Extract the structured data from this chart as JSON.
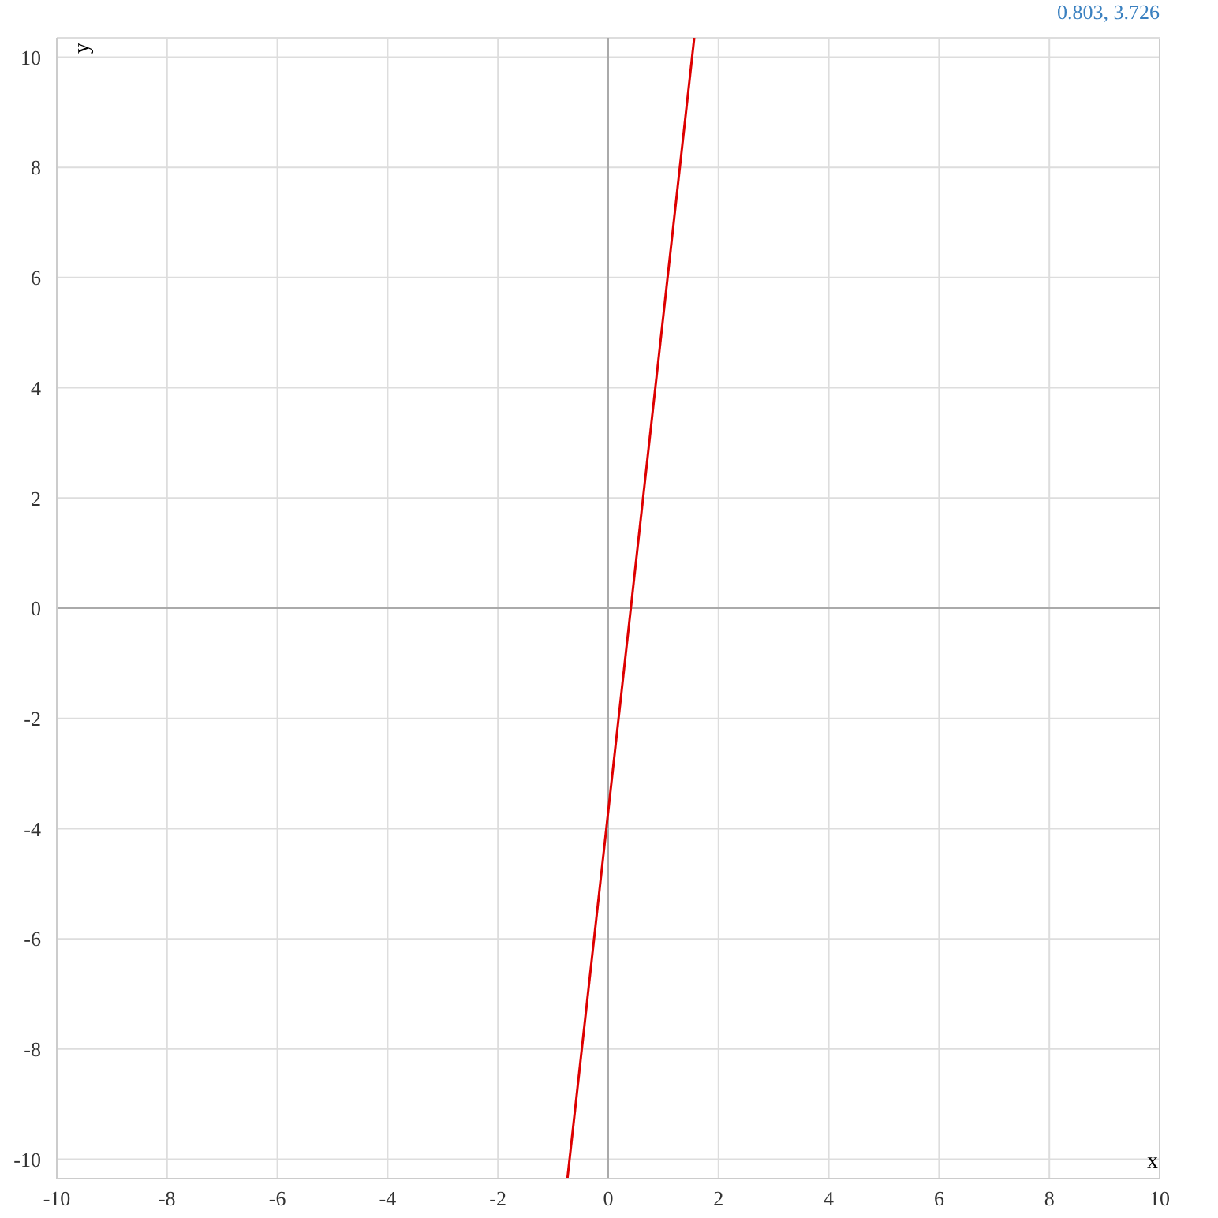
{
  "chart_data": {
    "type": "line",
    "xlabel": "x",
    "ylabel": "y",
    "annotations": [
      "0.803, 3.726"
    ],
    "series": [
      {
        "color": "#dd0000",
        "x": [
          -0.74,
          1.56
        ],
        "values": [
          -10.35,
          10.35
        ]
      }
    ],
    "xlim": [
      -10,
      10
    ],
    "ylim": [
      -10.35,
      10.35
    ],
    "xticks": [
      -10,
      -8,
      -6,
      -4,
      -2,
      0,
      2,
      4,
      6,
      8,
      10
    ],
    "yticks": [
      -10,
      -8,
      -6,
      -4,
      -2,
      0,
      2,
      4,
      6,
      8,
      10
    ],
    "grid": true,
    "marker": "none",
    "line_style": "solid"
  }
}
